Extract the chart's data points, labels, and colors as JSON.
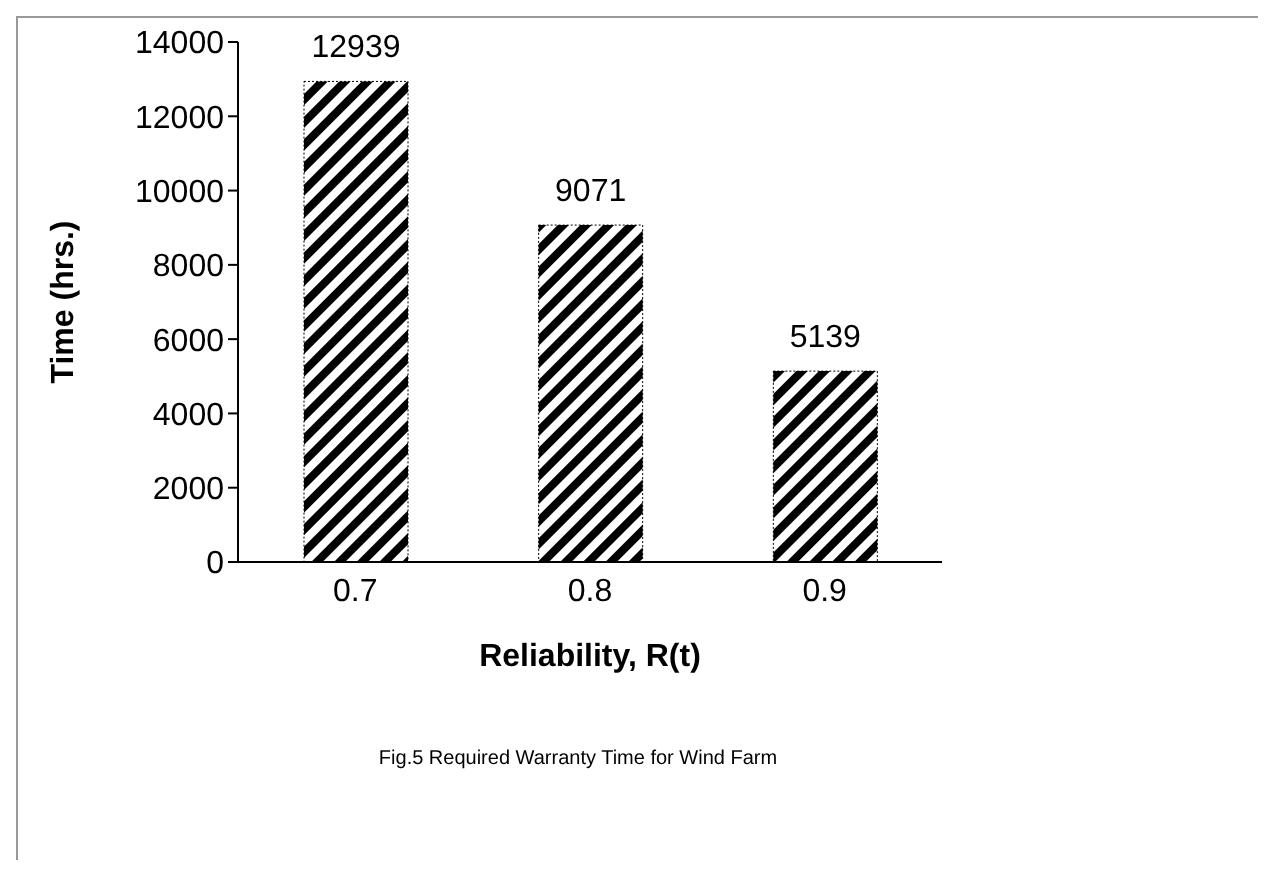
{
  "chart_data": {
    "type": "bar",
    "title": "Fig.5    Required Warranty Time for Wind Farm",
    "xlabel": "Reliability, R(t)",
    "ylabel": "Time (hrs.)",
    "categories": [
      "0.7",
      "0.8",
      "0.9"
    ],
    "values": [
      12939,
      9071,
      5139
    ],
    "color": "#000000",
    "ylim": [
      0,
      14000
    ],
    "yticks": [
      0,
      2000,
      4000,
      6000,
      8000,
      10000,
      12000,
      14000
    ],
    "grid": false,
    "legend": false,
    "data_labels": true
  }
}
